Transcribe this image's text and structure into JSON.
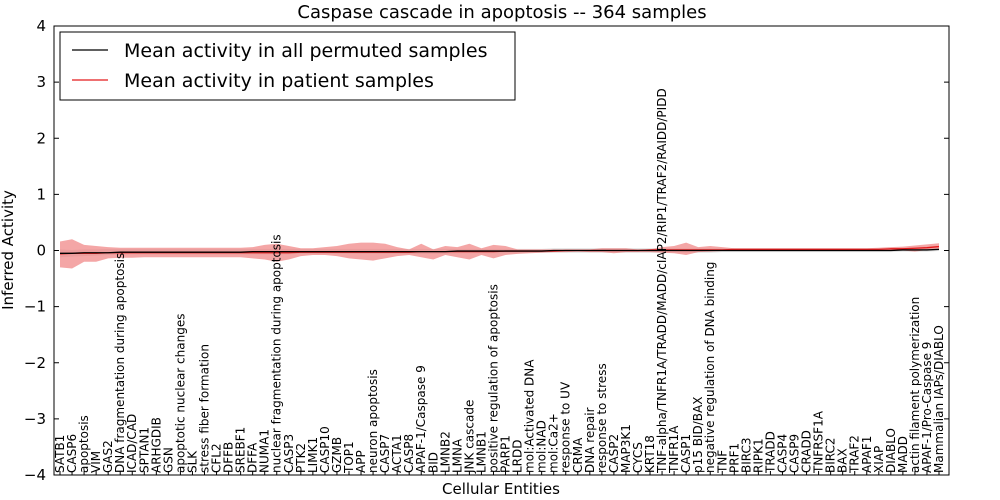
{
  "chart_data": {
    "type": "line",
    "title": "Caspase cascade in apoptosis -- 364 samples",
    "xlabel": "Cellular Entities",
    "ylabel": "Inferred Activity",
    "ylim": [
      -4,
      4
    ],
    "yticks": [
      -4,
      -3,
      -2,
      -1,
      0,
      1,
      2,
      3,
      4
    ],
    "ytick_labels": [
      "−4",
      "−3",
      "−2",
      "−1",
      "0",
      "1",
      "2",
      "3",
      "4"
    ],
    "grid": false,
    "legend_position": "top-left",
    "categories": [
      "SATB1",
      "CASP6",
      "apoptosis",
      "VIM",
      "GAS2",
      "DNA fragmentation during apoptosis",
      "ICAD/CAD",
      "SPTAN1",
      "ARHGDIB",
      "GSN",
      "apoptotic nuclear changes",
      "SLK",
      "stress fiber formation",
      "CFL2",
      "DFFB",
      "SREBF1",
      "DFFA",
      "NUMA1",
      "nuclear fragmentation during apoptosis",
      "CASP3",
      "PTK2",
      "LIMK1",
      "CASP10",
      "GZMB",
      "TOP1",
      "APP",
      "neuron apoptosis",
      "CASP7",
      "ACTA1",
      "CASP8",
      "APAF-1/Caspase 9",
      "BID",
      "LMNB2",
      "LMNA",
      "JNK cascade",
      "LMNB1",
      "positive regulation of apoptosis",
      "PARP1",
      "LRDD",
      "mol:Activated DNA",
      "mol:NAD",
      "mol:Ca2+",
      "response to UV",
      "CRMA",
      "DNA repair",
      "response to stress",
      "CASP2",
      "MAP3K1",
      "CYCS",
      "KRT18",
      "TNF-alpha/TNFR1A/TRADD/MADD/cIAP2/RIP1/TRAF2/RAIDD/PIDD",
      "TNFR1A",
      "CASP1",
      "p15 BID/BAX",
      "negative regulation of DNA binding",
      "TNF",
      "PRF1",
      "BIRC3",
      "RIPK1",
      "TRADD",
      "CASP4",
      "CASP9",
      "CRADD",
      "TNFRSF1A",
      "BIRC2",
      "BAX",
      "TRAF2",
      "APAF1",
      "XIAP",
      "DIABLO",
      "MADD",
      "actin filament polymerization",
      "APAF-1/Pro-Caspase 9",
      "Mammalian IAPs/DIABLO"
    ],
    "series": [
      {
        "name": "Mean activity in all permuted samples",
        "color": "#000000",
        "values": [
          -0.05,
          -0.05,
          -0.04,
          -0.04,
          -0.04,
          -0.03,
          -0.03,
          -0.03,
          -0.03,
          -0.03,
          -0.03,
          -0.03,
          -0.03,
          -0.03,
          -0.03,
          -0.03,
          -0.02,
          -0.02,
          -0.02,
          -0.02,
          -0.02,
          -0.02,
          -0.02,
          -0.02,
          -0.02,
          -0.02,
          -0.02,
          -0.02,
          -0.02,
          -0.02,
          -0.02,
          -0.02,
          -0.02,
          -0.01,
          -0.01,
          -0.01,
          -0.01,
          -0.01,
          -0.01,
          -0.01,
          -0.01,
          0,
          0,
          0,
          0,
          0,
          0,
          0,
          0,
          0,
          0,
          0,
          0,
          0,
          0,
          0,
          0,
          0,
          0,
          0,
          0,
          0,
          0,
          0,
          0,
          0,
          0,
          0,
          0,
          0,
          0.01,
          0.01,
          0.01,
          0.02
        ],
        "band_low": [
          -0.12,
          -0.11,
          -0.1,
          -0.09,
          -0.08,
          -0.08,
          -0.07,
          -0.07,
          -0.07,
          -0.07,
          -0.07,
          -0.07,
          -0.07,
          -0.07,
          -0.07,
          -0.07,
          -0.07,
          -0.07,
          -0.07,
          -0.07,
          -0.06,
          -0.06,
          -0.06,
          -0.06,
          -0.06,
          -0.06,
          -0.06,
          -0.06,
          -0.06,
          -0.06,
          -0.06,
          -0.06,
          -0.06,
          -0.05,
          -0.05,
          -0.05,
          -0.05,
          -0.05,
          -0.05,
          -0.04,
          -0.04,
          -0.04,
          -0.04,
          -0.04,
          -0.04,
          -0.04,
          -0.04,
          -0.04,
          -0.04,
          -0.04,
          -0.04,
          -0.04,
          -0.04,
          -0.04,
          -0.04,
          -0.03,
          -0.03,
          -0.03,
          -0.03,
          -0.03,
          -0.03,
          -0.03,
          -0.03,
          -0.03,
          -0.03,
          -0.03,
          -0.03,
          -0.03,
          -0.03,
          -0.03,
          -0.02,
          -0.02,
          -0.02,
          -0.01
        ],
        "band_high": [
          0.02,
          0.01,
          0.02,
          0.02,
          0.03,
          0.03,
          0.03,
          0.03,
          0.03,
          0.03,
          0.03,
          0.03,
          0.03,
          0.03,
          0.03,
          0.03,
          0.03,
          0.03,
          0.03,
          0.03,
          0.03,
          0.03,
          0.03,
          0.03,
          0.03,
          0.03,
          0.03,
          0.03,
          0.03,
          0.03,
          0.03,
          0.03,
          0.03,
          0.03,
          0.03,
          0.03,
          0.03,
          0.03,
          0.03,
          0.03,
          0.03,
          0.04,
          0.04,
          0.04,
          0.04,
          0.04,
          0.04,
          0.04,
          0.04,
          0.04,
          0.04,
          0.04,
          0.04,
          0.04,
          0.04,
          0.04,
          0.04,
          0.04,
          0.04,
          0.04,
          0.04,
          0.04,
          0.04,
          0.04,
          0.04,
          0.04,
          0.04,
          0.04,
          0.04,
          0.04,
          0.04,
          0.04,
          0.05,
          0.05
        ]
      },
      {
        "name": "Mean activity in patient samples",
        "color": "#e31a1c",
        "band_color": "#f08080",
        "values": [
          -0.06,
          -0.05,
          -0.05,
          -0.05,
          -0.04,
          -0.04,
          -0.04,
          -0.04,
          -0.04,
          -0.04,
          -0.04,
          -0.04,
          -0.04,
          -0.04,
          -0.04,
          -0.04,
          -0.04,
          -0.04,
          -0.04,
          -0.04,
          -0.03,
          -0.03,
          -0.03,
          -0.03,
          -0.03,
          -0.03,
          -0.03,
          -0.03,
          -0.03,
          -0.03,
          -0.02,
          -0.02,
          -0.02,
          -0.02,
          -0.02,
          -0.02,
          -0.02,
          -0.01,
          -0.01,
          -0.01,
          -0.01,
          -0.01,
          0,
          0,
          0,
          0,
          0,
          0,
          0,
          0.01,
          0.01,
          0.01,
          0.01,
          0.01,
          0.01,
          0.01,
          0.02,
          0.02,
          0.02,
          0.02,
          0.02,
          0.02,
          0.02,
          0.02,
          0.02,
          0.02,
          0.02,
          0.02,
          0.02,
          0.03,
          0.03,
          0.04,
          0.05,
          0.07
        ],
        "band_low": [
          -0.3,
          -0.32,
          -0.2,
          -0.2,
          -0.14,
          -0.13,
          -0.13,
          -0.12,
          -0.12,
          -0.12,
          -0.12,
          -0.12,
          -0.12,
          -0.12,
          -0.12,
          -0.12,
          -0.14,
          -0.16,
          -0.2,
          -0.16,
          -0.1,
          -0.08,
          -0.08,
          -0.1,
          -0.14,
          -0.16,
          -0.18,
          -0.14,
          -0.1,
          -0.08,
          -0.12,
          -0.16,
          -0.08,
          -0.12,
          -0.16,
          -0.08,
          -0.14,
          -0.08,
          -0.06,
          -0.05,
          -0.04,
          -0.03,
          -0.03,
          -0.02,
          -0.03,
          -0.03,
          -0.05,
          -0.03,
          -0.03,
          -0.03,
          -0.04,
          -0.05,
          -0.08,
          -0.03,
          -0.02,
          -0.01,
          0,
          0,
          0,
          0,
          0,
          0,
          0,
          0,
          0,
          0,
          0,
          0,
          0,
          0,
          0,
          -0.02,
          0.01,
          0.02
        ],
        "band_high": [
          0.16,
          0.2,
          0.1,
          0.08,
          0.06,
          0.05,
          0.05,
          0.05,
          0.05,
          0.05,
          0.05,
          0.05,
          0.05,
          0.05,
          0.05,
          0.05,
          0.06,
          0.1,
          0.12,
          0.08,
          0.04,
          0.04,
          0.06,
          0.08,
          0.12,
          0.14,
          0.14,
          0.12,
          0.06,
          0.02,
          0.12,
          0.02,
          0.08,
          0.06,
          0.12,
          0.04,
          0.1,
          0.08,
          0.02,
          0.02,
          0.02,
          0.02,
          0.02,
          0.02,
          0.02,
          0.04,
          0.04,
          0.04,
          0.02,
          0.02,
          0.06,
          0.08,
          0.14,
          0.06,
          0.08,
          0.06,
          0.04,
          0.04,
          0.04,
          0.04,
          0.04,
          0.04,
          0.04,
          0.04,
          0.04,
          0.04,
          0.04,
          0.04,
          0.05,
          0.06,
          0.07,
          0.09,
          0.11,
          0.13
        ]
      }
    ]
  }
}
